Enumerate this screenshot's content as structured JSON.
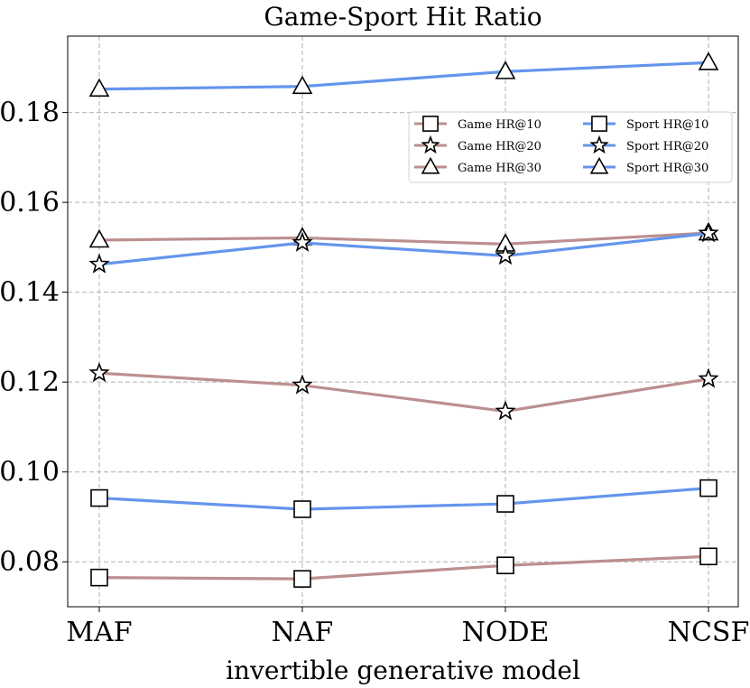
{
  "chart_data": {
    "type": "line",
    "title": "Game-Sport Hit Ratio",
    "xlabel": "invertible generative model",
    "ylabel": "",
    "categories": [
      "MAF",
      "NAF",
      "NODE",
      "NCSF"
    ],
    "ylim": [
      0.07,
      0.197
    ],
    "yticks": [
      0.08,
      0.1,
      0.12,
      0.14,
      0.16,
      0.18
    ],
    "ytick_labels": [
      "0.08",
      "0.10",
      "0.12",
      "0.14",
      "0.16",
      "0.18"
    ],
    "grid": true,
    "legend_position": "upper-right",
    "colors": {
      "game": "#bc8f8f",
      "sport": "#6495ed"
    },
    "series": [
      {
        "name": "Game HR@10",
        "group": "game",
        "marker": "square",
        "values": [
          0.0765,
          0.0762,
          0.0792,
          0.0812
        ]
      },
      {
        "name": "Game HR@20",
        "group": "game",
        "marker": "star",
        "values": [
          0.122,
          0.1193,
          0.1135,
          0.1207
        ]
      },
      {
        "name": "Game HR@30",
        "group": "game",
        "marker": "triangle",
        "values": [
          0.1516,
          0.1521,
          0.1507,
          0.1532
        ]
      },
      {
        "name": "Sport HR@10",
        "group": "sport",
        "marker": "square",
        "values": [
          0.0942,
          0.0917,
          0.0929,
          0.0964
        ]
      },
      {
        "name": "Sport HR@20",
        "group": "sport",
        "marker": "star",
        "values": [
          0.1462,
          0.151,
          0.1481,
          0.1531
        ]
      },
      {
        "name": "Sport HR@30",
        "group": "sport",
        "marker": "triangle",
        "values": [
          0.1852,
          0.1858,
          0.1891,
          0.1911
        ]
      }
    ]
  }
}
